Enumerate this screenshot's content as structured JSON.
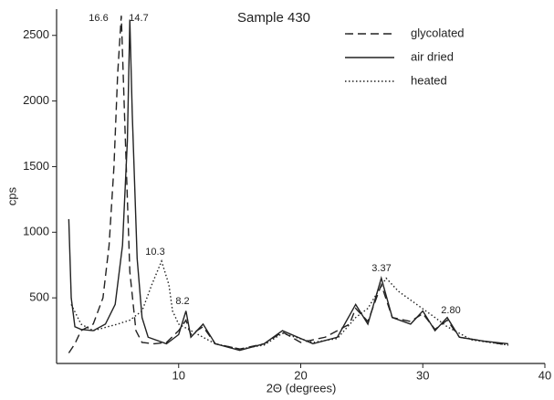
{
  "chart_data": {
    "type": "line",
    "title": "Sample 430",
    "x_label": "2Θ (degrees)",
    "y_label": "cps",
    "xlim": [
      0,
      40
    ],
    "xticks": [
      10,
      20,
      30,
      40
    ],
    "ylim": [
      0,
      2700
    ],
    "yticks": [
      500,
      1000,
      1500,
      2000,
      2500
    ],
    "legend": "top-right",
    "annotations": [
      "16.6",
      "14.7",
      "10.3",
      "8.2",
      "3.37",
      "2.80"
    ],
    "series": [
      {
        "name": "glycolated",
        "color": "#222",
        "style": "dashed",
        "x": [
          1,
          1.5,
          2,
          3,
          3.8,
          4.3,
          4.7,
          5.0,
          5.3,
          5.6,
          6.0,
          6.5,
          7.0,
          8,
          9,
          10,
          10.6,
          11,
          12,
          13,
          15,
          17,
          18.5,
          20,
          22,
          24,
          24.5,
          25.5,
          26.6,
          27.5,
          29,
          30,
          31,
          32,
          33,
          35,
          37
        ],
        "values": [
          80,
          150,
          250,
          300,
          500,
          900,
          1500,
          2200,
          2650,
          1800,
          700,
          250,
          160,
          150,
          160,
          250,
          330,
          220,
          280,
          150,
          110,
          150,
          240,
          160,
          200,
          300,
          420,
          320,
          600,
          350,
          320,
          380,
          260,
          330,
          200,
          170,
          140
        ]
      },
      {
        "name": "air dried",
        "color": "#222",
        "style": "solid",
        "x": [
          1,
          1.2,
          1.5,
          2,
          3,
          4,
          4.8,
          5.4,
          5.8,
          6.0,
          6.2,
          6.6,
          7.0,
          7.5,
          9,
          10,
          10.6,
          11,
          12,
          13,
          15,
          17,
          18.5,
          21,
          23,
          24.5,
          25.5,
          26.6,
          27.5,
          29,
          30,
          31,
          32,
          33,
          35,
          37
        ],
        "values": [
          1100,
          500,
          280,
          260,
          250,
          300,
          450,
          900,
          1700,
          2620,
          1900,
          800,
          350,
          200,
          150,
          220,
          400,
          200,
          300,
          150,
          100,
          150,
          250,
          150,
          200,
          450,
          300,
          650,
          350,
          300,
          400,
          250,
          350,
          200,
          170,
          150
        ]
      },
      {
        "name": "heated",
        "color": "#222",
        "style": "dotted",
        "x": [
          1.2,
          2,
          3,
          5,
          6,
          7,
          7.8,
          8.6,
          9.2,
          9.5,
          10,
          11,
          13,
          15,
          17,
          18.5,
          21,
          23,
          24.5,
          25.5,
          27,
          28,
          29.5,
          31,
          32,
          34,
          37
        ],
        "values": [
          450,
          300,
          250,
          300,
          330,
          400,
          600,
          780,
          600,
          400,
          300,
          250,
          150,
          110,
          140,
          230,
          160,
          190,
          350,
          420,
          650,
          550,
          450,
          350,
          280,
          180,
          140
        ]
      }
    ]
  }
}
